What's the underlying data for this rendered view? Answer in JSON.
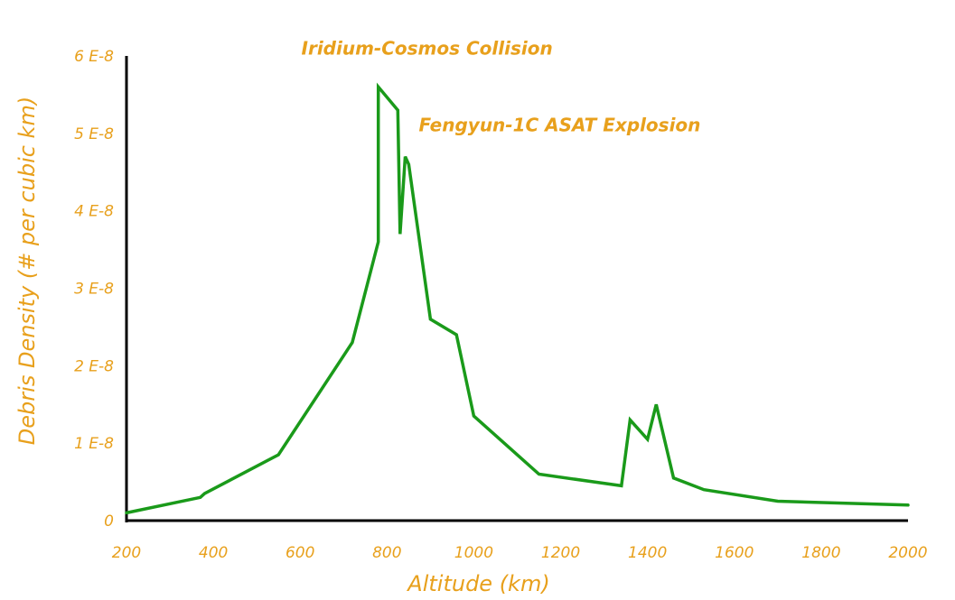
{
  "chart_data": {
    "type": "line",
    "title": "",
    "xlabel": "Altitude (km)",
    "ylabel": "Debris Density (# per cubic km)",
    "xlim": [
      200,
      2000
    ],
    "ylim": [
      0,
      6
    ],
    "y_unit_exponent": "E-8",
    "x_ticks": [
      "200",
      "400",
      "600",
      "800",
      "1000",
      "1200",
      "1400",
      "1600",
      "1800",
      "2000"
    ],
    "y_ticks": [
      "0",
      "1 E-8",
      "2 E-8",
      "3 E-8",
      "4 E-8",
      "5 E-8",
      "6 E-8"
    ],
    "grid": false,
    "legend": "none",
    "annotations": [
      {
        "text": "Iridium-Cosmos Collision",
        "x": 790,
        "y": 5.6
      },
      {
        "text": "Fengyun-1C ASAT Explosion",
        "x": 840,
        "y": 4.7
      }
    ],
    "series": [
      {
        "color": "#1a9a1a",
        "x": [
          200,
          370,
          380,
          550,
          720,
          780,
          780,
          825,
          830,
          842,
          850,
          900,
          960,
          1000,
          1150,
          1340,
          1360,
          1400,
          1420,
          1460,
          1530,
          1700,
          2000
        ],
        "y": [
          0.1,
          0.3,
          0.35,
          0.85,
          2.3,
          3.6,
          5.6,
          5.3,
          3.7,
          4.7,
          4.6,
          2.6,
          2.4,
          1.35,
          0.6,
          0.45,
          1.3,
          1.05,
          1.5,
          0.55,
          0.4,
          0.25,
          0.2
        ]
      }
    ]
  }
}
